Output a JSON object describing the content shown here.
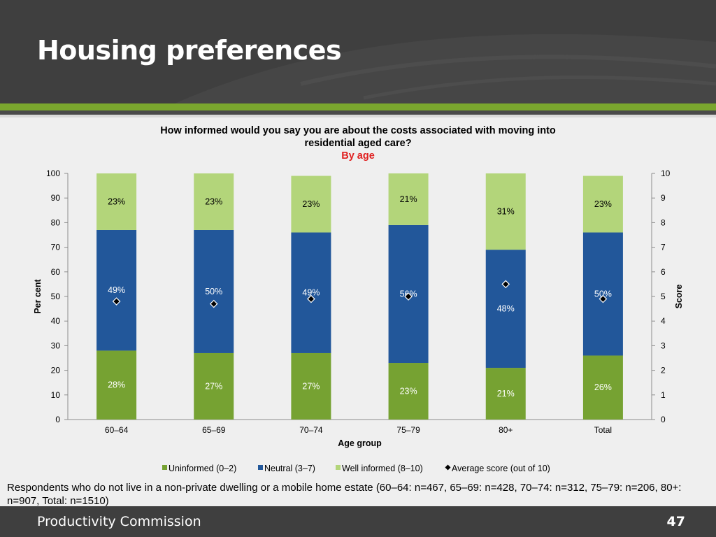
{
  "header": {
    "title": "Housing preferences"
  },
  "footer": {
    "organisation": "Productivity Commission",
    "page_number": "47"
  },
  "note": "Respondents who do not live in a non-private dwelling or a mobile home estate (60–64: n=467, 65–69: n=428, 70–74: n=312, 75–79: n=206, 80+: n=907, Total: n=1510)",
  "colors": {
    "uninformed": "#76a232",
    "neutral": "#22579a",
    "well_informed": "#b3d57a",
    "marker": "#000000"
  },
  "chart_data": {
    "type": "bar",
    "stacked": true,
    "title": "How informed would you say you are about the costs associated with moving into residential aged care?",
    "subtitle": "By age",
    "xlabel": "Age group",
    "ylabel": "Per cent",
    "y2label": "Score",
    "ylim": [
      0,
      100
    ],
    "y2lim": [
      0,
      10
    ],
    "yticks": [
      "0",
      "10",
      "20",
      "30",
      "40",
      "50",
      "60",
      "70",
      "80",
      "90",
      "100"
    ],
    "y2ticks": [
      "0",
      "1",
      "2",
      "3",
      "4",
      "5",
      "6",
      "7",
      "8",
      "9",
      "10"
    ],
    "categories": [
      "60–64",
      "65–69",
      "70–74",
      "75–79",
      "80+",
      "Total"
    ],
    "series": [
      {
        "name": "Uninformed (0–2)",
        "values": [
          28,
          27,
          27,
          23,
          21,
          26
        ],
        "labels": [
          "28%",
          "27%",
          "27%",
          "23%",
          "21%",
          "26%"
        ]
      },
      {
        "name": "Neutral (3–7)",
        "values": [
          49,
          50,
          49,
          56,
          48,
          50
        ],
        "labels": [
          "49%",
          "50%",
          "49%",
          "56%",
          "48%",
          "50%"
        ]
      },
      {
        "name": "Well informed (8–10)",
        "values": [
          23,
          23,
          23,
          21,
          31,
          23
        ],
        "labels": [
          "23%",
          "23%",
          "23%",
          "21%",
          "31%",
          "23%"
        ]
      }
    ],
    "average_score": {
      "name": "Average score (out of 10)",
      "values": [
        4.8,
        4.7,
        4.9,
        5.0,
        5.5,
        4.9
      ]
    },
    "legend_position": "bottom",
    "grid": false
  }
}
